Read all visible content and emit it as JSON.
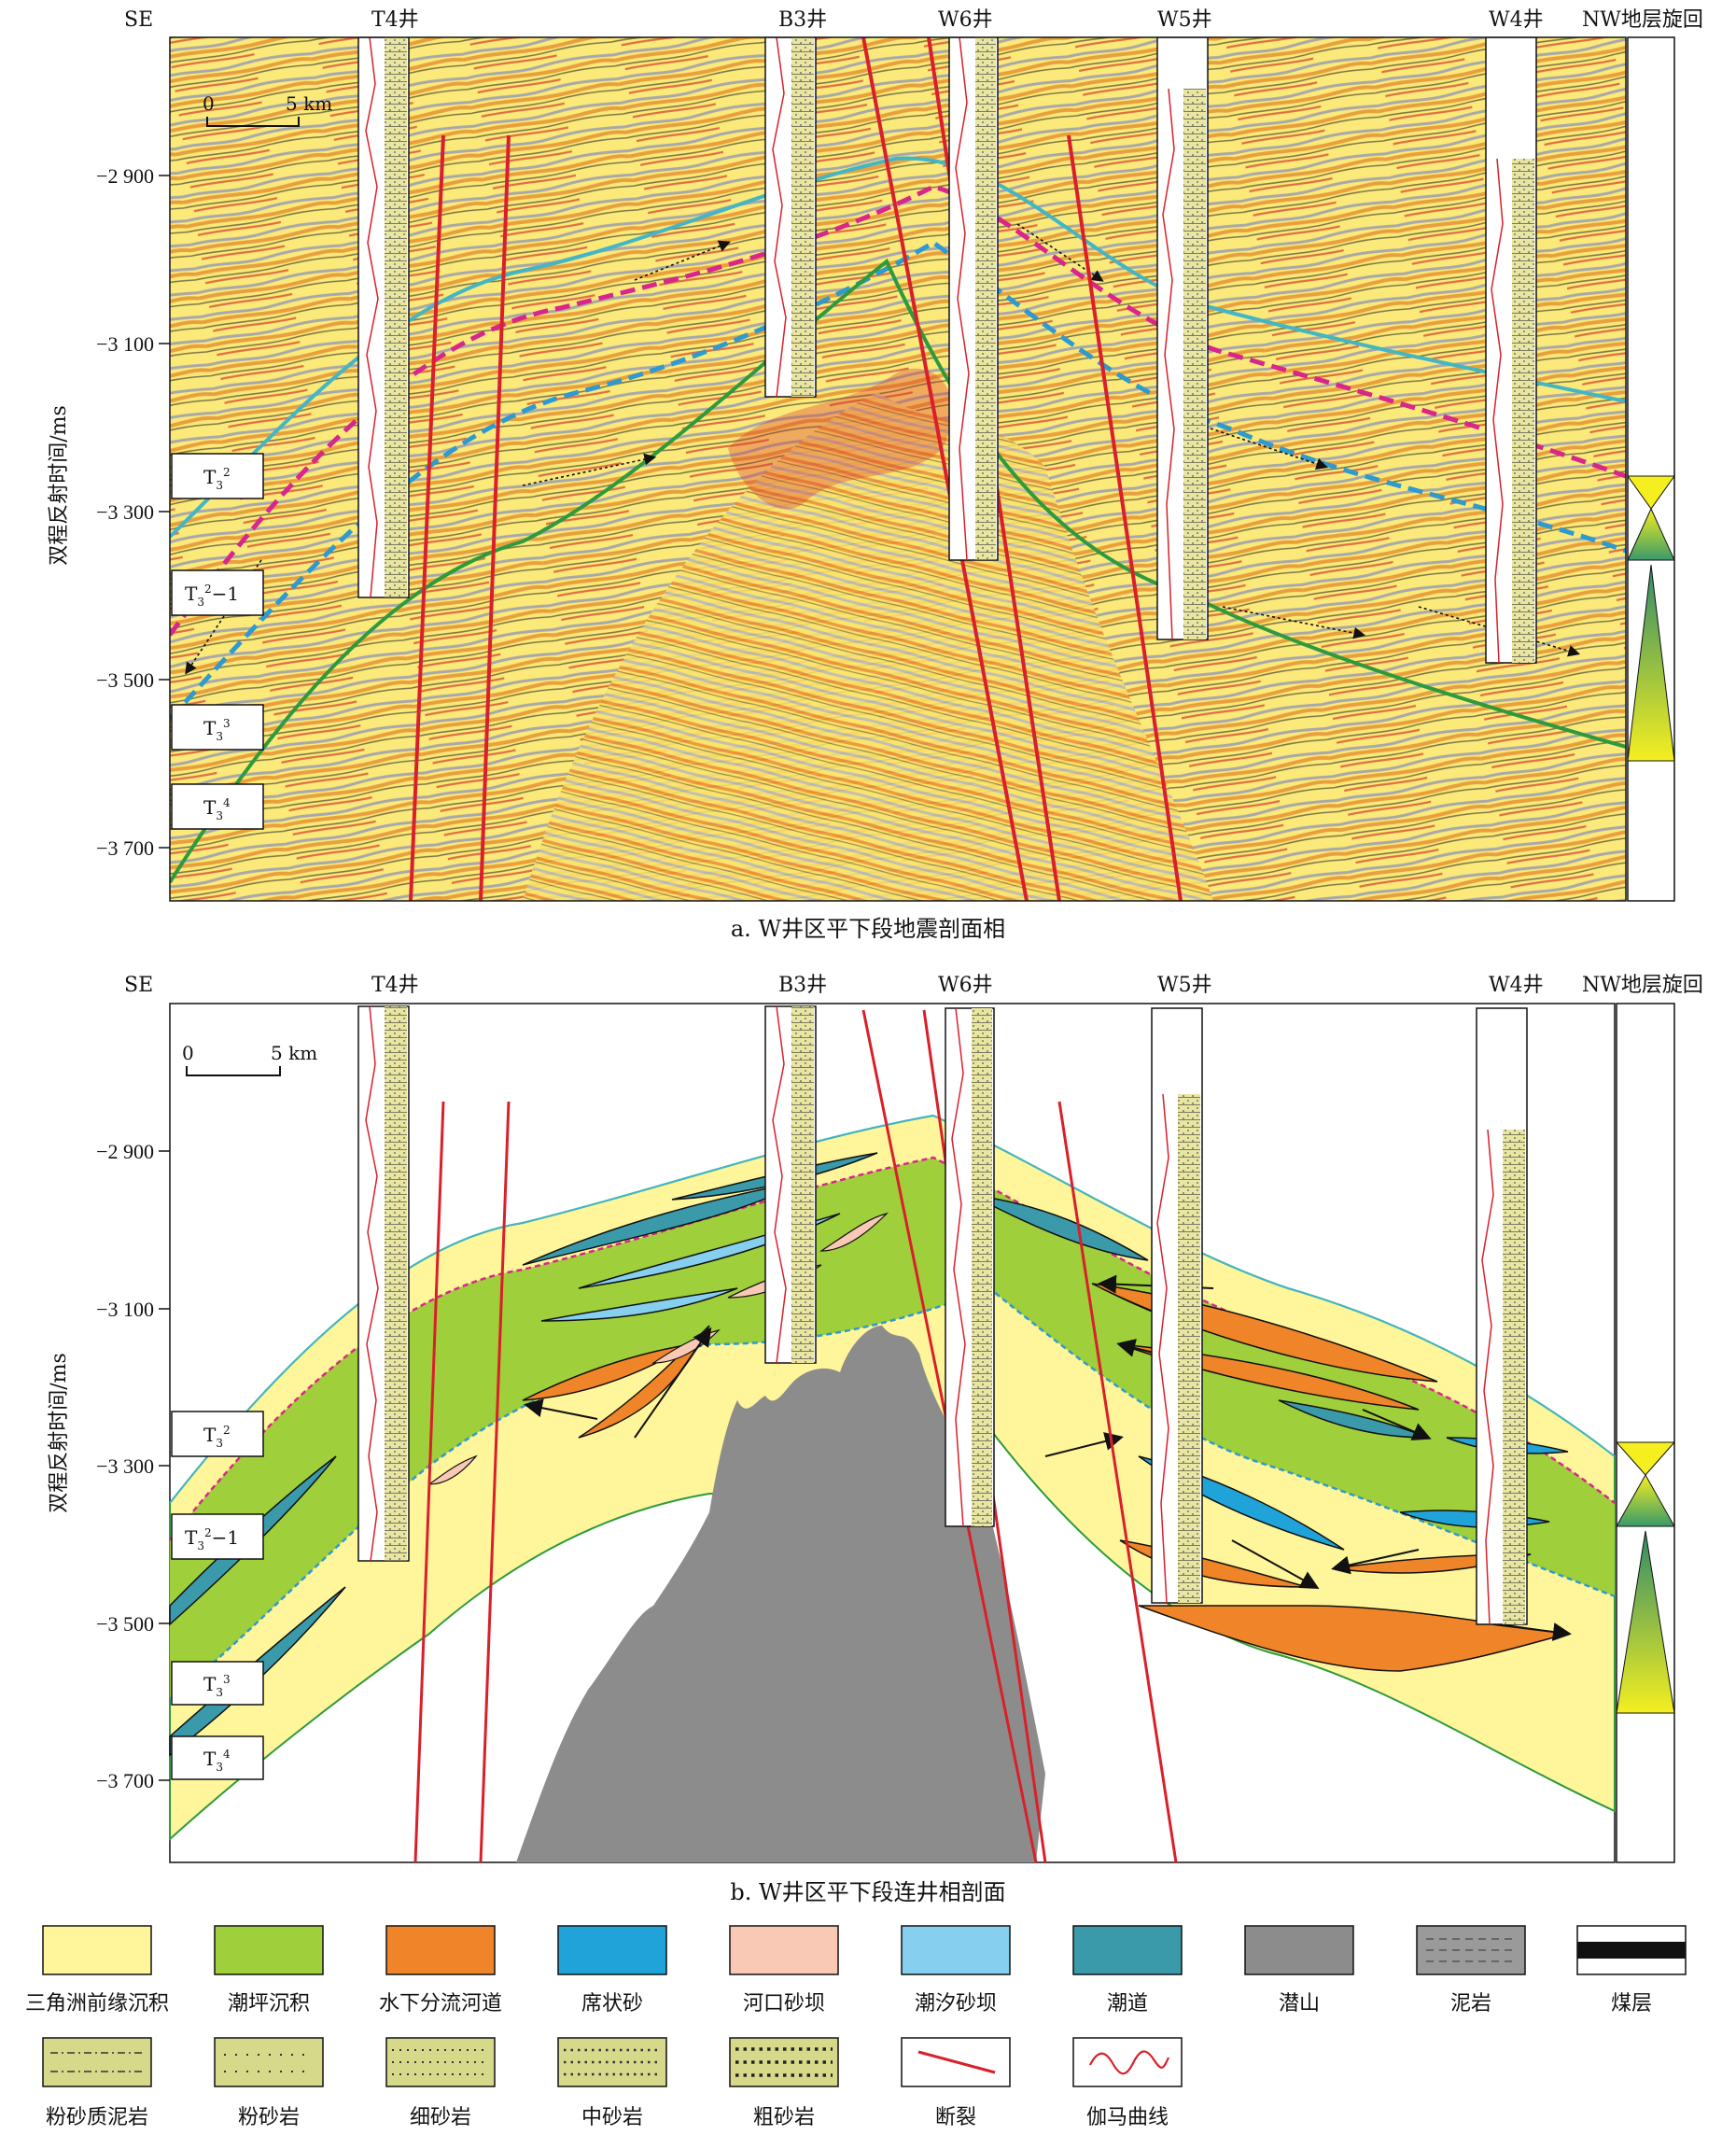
{
  "panel_a": {
    "caption": "a. W井区平下段地震剖面相",
    "left_label": "SE",
    "right_label": "NW地层旋回",
    "y_axis_label": "双程反射时间/ms",
    "y_ticks": [
      "−2 900",
      "−3 100",
      "−3 300",
      "−3 500",
      "−3 700"
    ],
    "scale_start": "0",
    "scale_end": "5 km",
    "wells": [
      "T4井",
      "B3井",
      "W6井",
      "W5井",
      "W4井"
    ],
    "strata": [
      {
        "base": "T",
        "sub": "3",
        "sup": "2",
        "suffix": ""
      },
      {
        "base": "T",
        "sub": "3",
        "sup": "2",
        "suffix": "−1"
      },
      {
        "base": "T",
        "sub": "3",
        "sup": "3",
        "suffix": ""
      },
      {
        "base": "T",
        "sub": "3",
        "sup": "4",
        "suffix": ""
      }
    ]
  },
  "panel_b": {
    "caption": "b. W井区平下段连井相剖面",
    "left_label": "SE",
    "right_label": "NW地层旋回",
    "y_axis_label": "双程反射时间/ms",
    "y_ticks": [
      "−2 900",
      "−3 100",
      "−3 300",
      "−3 500",
      "−3 700"
    ],
    "scale_start": "0",
    "scale_end": "5 km",
    "wells": [
      "T4井",
      "B3井",
      "W6井",
      "W5井",
      "W4井"
    ],
    "strata": [
      {
        "base": "T",
        "sub": "3",
        "sup": "2",
        "suffix": ""
      },
      {
        "base": "T",
        "sub": "3",
        "sup": "2",
        "suffix": "−1"
      },
      {
        "base": "T",
        "sub": "3",
        "sup": "3",
        "suffix": ""
      },
      {
        "base": "T",
        "sub": "3",
        "sup": "4",
        "suffix": ""
      }
    ]
  },
  "legend_row1": [
    {
      "label": "三角洲前缘沉积",
      "color": "#fff59a",
      "kind": "fill"
    },
    {
      "label": "潮坪沉积",
      "color": "#9fcf3a",
      "kind": "fill"
    },
    {
      "label": "水下分流河道",
      "color": "#f08428",
      "kind": "fill"
    },
    {
      "label": "席状砂",
      "color": "#1fa3d8",
      "kind": "fill"
    },
    {
      "label": "河口砂坝",
      "color": "#f9c9b5",
      "kind": "fill"
    },
    {
      "label": "潮汐砂坝",
      "color": "#86cfef",
      "kind": "fill"
    },
    {
      "label": "潮道",
      "color": "#3a9aaa",
      "kind": "fill"
    },
    {
      "label": "潜山",
      "color": "#8c8c8c",
      "kind": "fill"
    },
    {
      "label": "泥岩",
      "color": "#9a9a9a",
      "kind": "dash"
    },
    {
      "label": "煤层",
      "color": "#111111",
      "kind": "bar"
    }
  ],
  "legend_row2": [
    {
      "label": "粉砂质泥岩",
      "color": "#d6d98a",
      "kind": "dashdot"
    },
    {
      "label": "粉砂岩",
      "color": "#d6d98a",
      "kind": "dots2"
    },
    {
      "label": "细砂岩",
      "color": "#d6d98a",
      "kind": "dots3"
    },
    {
      "label": "中砂岩",
      "color": "#d6d98a",
      "kind": "dots3b"
    },
    {
      "label": "粗砂岩",
      "color": "#d6d98a",
      "kind": "dots4"
    },
    {
      "label": "断裂",
      "color": "#d9202a",
      "kind": "fault"
    },
    {
      "label": "伽马曲线",
      "color": "#d9202a",
      "kind": "gamma"
    }
  ]
}
